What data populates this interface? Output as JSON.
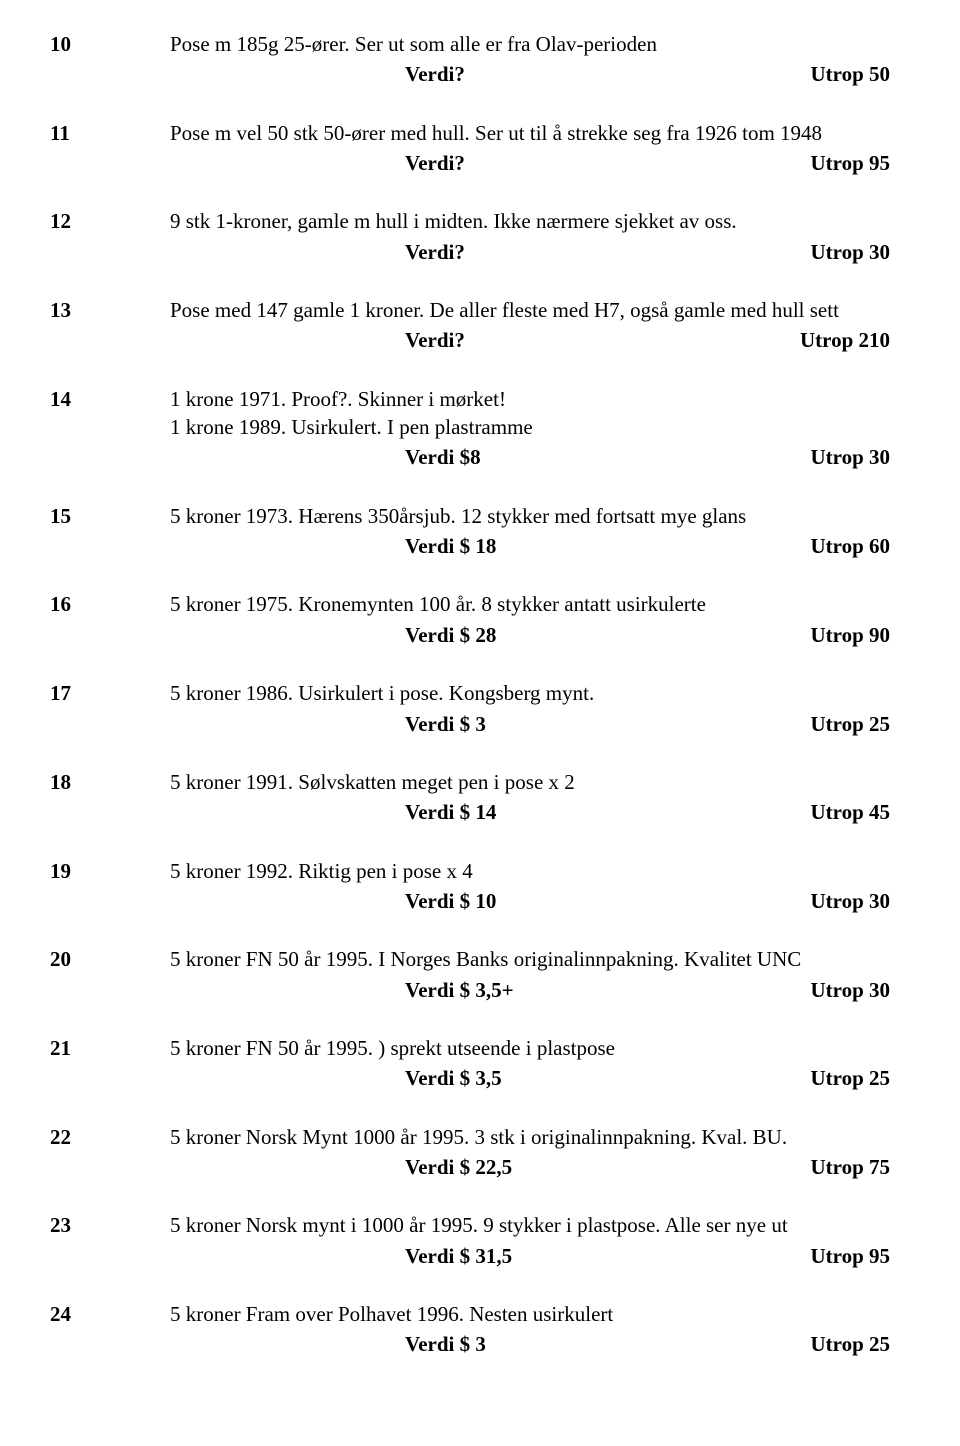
{
  "lots": [
    {
      "num": "10",
      "desc": "Pose m 185g 25-ører. Ser ut som alle er fra Olav-perioden",
      "verdi": "Verdi?",
      "utrop": "Utrop 50"
    },
    {
      "num": "11",
      "desc": "Pose m vel 50 stk 50-ører med hull. Ser ut til å strekke seg fra 1926 tom 1948",
      "verdi": "Verdi?",
      "utrop": "Utrop 95"
    },
    {
      "num": "12",
      "desc": "9 stk 1-kroner, gamle m hull i midten. Ikke nærmere sjekket av oss.",
      "verdi": "Verdi?",
      "utrop": "Utrop 30"
    },
    {
      "num": "13",
      "desc": "Pose med 147 gamle 1 kroner. De aller fleste med H7, også gamle med hull sett",
      "verdi": "Verdi?",
      "utrop": "Utrop 210"
    },
    {
      "num": "14",
      "desc": "1 krone 1971. Proof?. Skinner i mørket!\n1 krone 1989. Usirkulert. I pen plastramme",
      "verdi": "Verdi $8",
      "utrop": "Utrop 30"
    },
    {
      "num": "15",
      "desc": "5 kroner 1973. Hærens 350årsjub. 12 stykker med fortsatt mye glans",
      "verdi": "Verdi $ 18",
      "utrop": "Utrop 60"
    },
    {
      "num": "16",
      "desc": "5 kroner 1975. Kronemynten 100 år. 8 stykker antatt usirkulerte",
      "verdi": "Verdi $ 28",
      "utrop": "Utrop 90"
    },
    {
      "num": "17",
      "desc": "5 kroner 1986. Usirkulert i pose. Kongsberg mynt.",
      "verdi": "Verdi $ 3",
      "utrop": "Utrop 25"
    },
    {
      "num": "18",
      "desc": "5 kroner 1991. Sølvskatten meget pen i pose x 2",
      "verdi": "Verdi $ 14",
      "utrop": "Utrop 45"
    },
    {
      "num": "19",
      "desc": "5 kroner 1992. Riktig pen i pose x 4",
      "verdi": "Verdi $ 10",
      "utrop": "Utrop 30"
    },
    {
      "num": "20",
      "desc": "5 kroner FN 50 år 1995. I Norges Banks originalinnpakning. Kvalitet UNC",
      "verdi": "Verdi $ 3,5+",
      "utrop": "Utrop 30"
    },
    {
      "num": "21",
      "desc": "5 kroner FN 50 år 1995. ) sprekt utseende i plastpose",
      "verdi": "Verdi $ 3,5",
      "utrop": "Utrop 25"
    },
    {
      "num": "22",
      "desc": "5 kroner Norsk Mynt 1000 år 1995. 3 stk i originalinnpakning. Kval. BU.",
      "verdi": "Verdi $ 22,5",
      "utrop": "Utrop 75"
    },
    {
      "num": "23",
      "desc": "5 kroner Norsk mynt i 1000 år 1995. 9 stykker i plastpose. Alle ser nye ut",
      "verdi": "Verdi $ 31,5",
      "utrop": "Utrop 95"
    },
    {
      "num": "24",
      "desc": "5 kroner Fram over Polhavet 1996. Nesten usirkulert",
      "verdi": "Verdi $ 3",
      "utrop": "Utrop 25"
    }
  ]
}
